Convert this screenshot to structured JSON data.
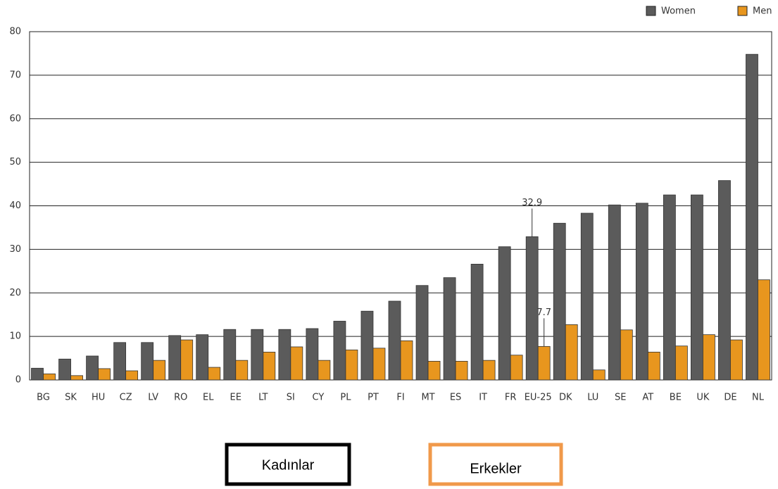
{
  "chart_data": {
    "type": "bar",
    "categories": [
      "BG",
      "SK",
      "HU",
      "CZ",
      "LV",
      "RO",
      "EL",
      "EE",
      "LT",
      "SI",
      "CY",
      "PL",
      "PT",
      "FI",
      "MT",
      "ES",
      "IT",
      "FR",
      "EU-25",
      "DK",
      "LU",
      "SE",
      "AT",
      "BE",
      "UK",
      "DE",
      "NL"
    ],
    "series": [
      {
        "name": "Women",
        "color": "#5b5b5b",
        "values": [
          2.7,
          4.8,
          5.5,
          8.6,
          8.6,
          10.2,
          10.4,
          11.6,
          11.6,
          11.6,
          11.8,
          13.5,
          15.8,
          18.1,
          21.7,
          23.5,
          26.6,
          30.6,
          32.9,
          36.0,
          38.3,
          40.2,
          40.6,
          42.5,
          42.5,
          45.8,
          74.8
        ],
        "value_labels": [
          null,
          null,
          null,
          null,
          null,
          null,
          null,
          null,
          null,
          null,
          null,
          null,
          null,
          null,
          null,
          null,
          null,
          null,
          "32.9",
          null,
          null,
          null,
          null,
          null,
          null,
          null,
          null
        ]
      },
      {
        "name": "Men",
        "color": "#e8961e",
        "values": [
          1.4,
          1.0,
          2.6,
          2.1,
          4.5,
          9.2,
          2.9,
          4.5,
          6.4,
          7.6,
          4.5,
          6.9,
          7.3,
          9.0,
          4.3,
          4.3,
          4.5,
          5.7,
          7.7,
          12.7,
          2.3,
          11.5,
          6.4,
          7.8,
          10.4,
          9.2,
          23.0
        ],
        "value_labels": [
          null,
          null,
          null,
          null,
          null,
          null,
          null,
          null,
          null,
          null,
          null,
          null,
          null,
          null,
          null,
          null,
          null,
          null,
          "7.7",
          null,
          null,
          null,
          null,
          null,
          null,
          null,
          null
        ]
      }
    ],
    "ylim": [
      0,
      80
    ],
    "yticks": [
      0,
      10,
      20,
      30,
      40,
      50,
      60,
      70,
      80
    ],
    "grid": true,
    "legend": "top-right",
    "annotations": [
      "Kadınlar",
      "Erkekler"
    ]
  }
}
